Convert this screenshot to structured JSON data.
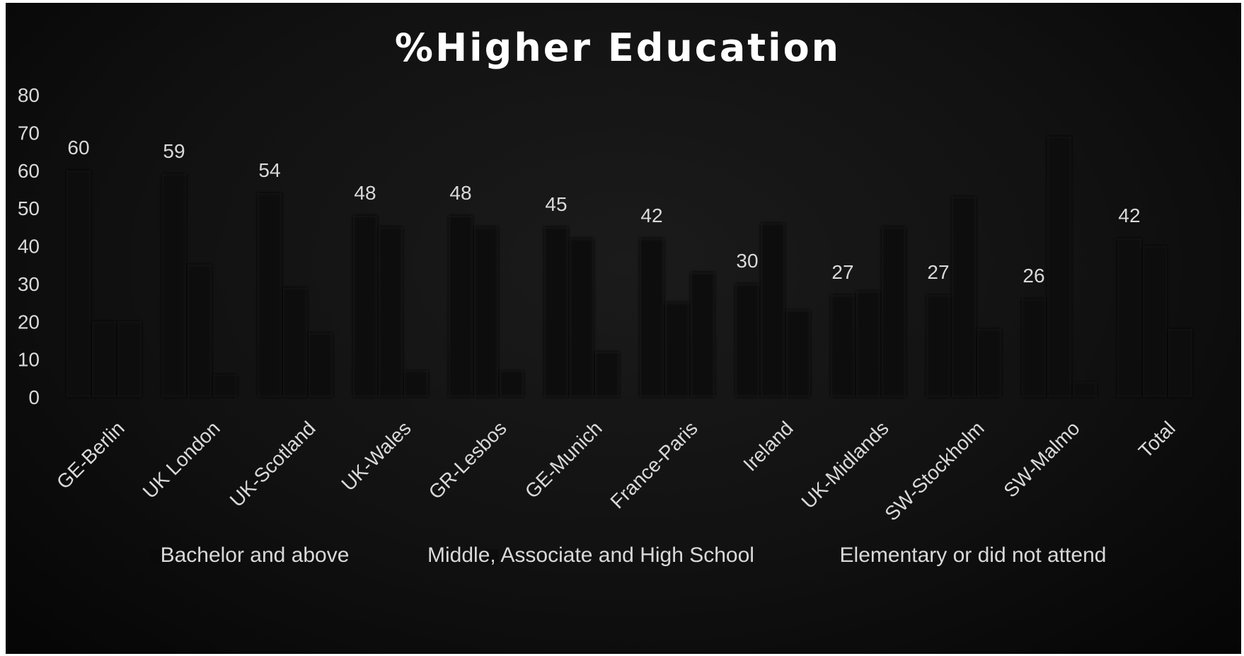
{
  "chart_data": {
    "type": "bar",
    "title": "%Higher Education",
    "xlabel": "",
    "ylabel": "",
    "ylim": [
      0,
      80
    ],
    "yticks": [
      "0",
      "10",
      "20",
      "30",
      "40",
      "50",
      "60",
      "70",
      "80"
    ],
    "grid": false,
    "legend_position": "bottom",
    "categories": [
      "GE-Berlin",
      "UK London",
      "UK-Scotland",
      "UK-Wales",
      "GR-Lesbos",
      "GE-Munich",
      "France-Paris",
      "Ireland",
      "UK-Midlands",
      "SW-Stockholm",
      "SW-Malmo",
      "Total"
    ],
    "series": [
      {
        "name": "Bachelor and above",
        "values": [
          60,
          59,
          54,
          48,
          48,
          45,
          42,
          30,
          27,
          27,
          26,
          42
        ],
        "labels": [
          "60",
          "59",
          "54",
          "48",
          "48",
          "45",
          "42",
          "30",
          "27",
          "27",
          "26",
          "42"
        ],
        "color": "#0a0a0a"
      },
      {
        "name": "Middle, Associate and High School",
        "values": [
          20,
          35,
          29,
          45,
          45,
          42,
          25,
          46,
          28,
          53,
          69,
          40
        ],
        "color": "#0c0c0c"
      },
      {
        "name": "Elementary or did not attend",
        "values": [
          20,
          6,
          17,
          7,
          7,
          12,
          33,
          23,
          45,
          18,
          4,
          18
        ],
        "color": "#0e0e0e"
      }
    ]
  },
  "colors": {
    "background": "#111111",
    "text": "#d9d9d9",
    "title": "#ffffff"
  }
}
